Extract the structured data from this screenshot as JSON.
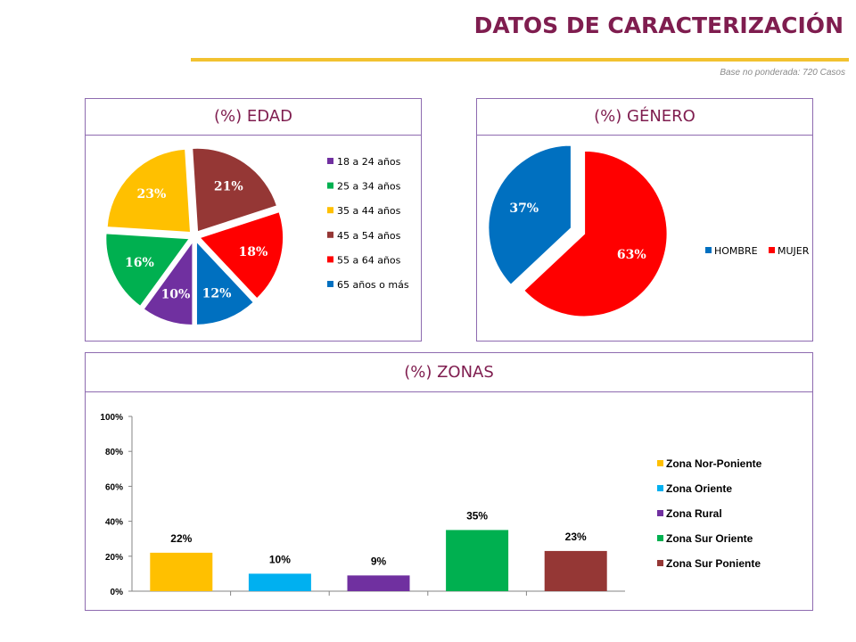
{
  "header": {
    "title": "DATOS DE CARACTERIZACIÓN",
    "base_note": "Base no ponderada: 720 Casos"
  },
  "colors": {
    "accent_title": "#7f1d4f",
    "rule": "#f2c230",
    "panel_border": "#8e6bb0"
  },
  "chart_data": [
    {
      "type": "pie",
      "title": "(%) EDAD",
      "legend_position": "right",
      "slices": [
        {
          "label": "18 a 24 años",
          "value": 10,
          "value_label": "10%",
          "color": "#7030a0"
        },
        {
          "label": "25 a 34 años",
          "value": 16,
          "value_label": "16%",
          "color": "#00b050"
        },
        {
          "label": "35 a 44 años",
          "value": 23,
          "value_label": "23%",
          "color": "#ffc000"
        },
        {
          "label": "45 a 54 años",
          "value": 21,
          "value_label": "21%",
          "color": "#953735"
        },
        {
          "label": "55 a 64 años",
          "value": 18,
          "value_label": "18%",
          "color": "#ff0000"
        },
        {
          "label": "65 años o más",
          "value": 12,
          "value_label": "12%",
          "color": "#0070c0"
        }
      ]
    },
    {
      "type": "pie",
      "title": "(%) GÉNERO",
      "legend_position": "right",
      "slices": [
        {
          "label": "HOMBRE",
          "value": 37,
          "value_label": "37%",
          "color": "#0070c0"
        },
        {
          "label": "MUJER",
          "value": 63,
          "value_label": "63%",
          "color": "#ff0000"
        }
      ]
    },
    {
      "type": "bar",
      "title": "(%) ZONAS",
      "legend_position": "right",
      "ylim": [
        0,
        100
      ],
      "yticks": [
        "0%",
        "20%",
        "40%",
        "60%",
        "80%",
        "100%"
      ],
      "grid": false,
      "categories": [
        "Zona Nor-Poniente",
        "Zona Oriente",
        "Zona Rural",
        "Zona Sur Oriente",
        "Zona Sur Poniente"
      ],
      "values": [
        22,
        10,
        9,
        35,
        23
      ],
      "value_labels": [
        "22%",
        "10%",
        "9%",
        "35%",
        "23%"
      ],
      "colors": [
        "#ffc000",
        "#00b0f0",
        "#7030a0",
        "#00b050",
        "#953735"
      ]
    }
  ]
}
